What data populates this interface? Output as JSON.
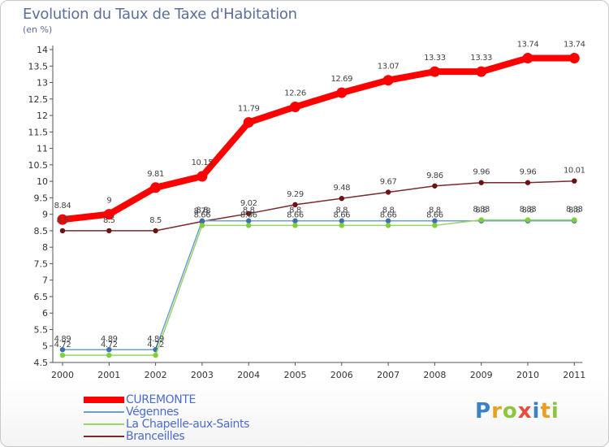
{
  "chart_data": {
    "type": "line",
    "title": "Evolution du Taux de Taxe d'Habitation",
    "subtitle": "(en %)",
    "x": [
      "2000",
      "2001",
      "2002",
      "2003",
      "2004",
      "2005",
      "2006",
      "2007",
      "2008",
      "2009",
      "2010",
      "2011"
    ],
    "ylim": [
      4.5,
      14
    ],
    "yticks": [
      "4.5",
      "5",
      "5.5",
      "6",
      "6.5",
      "7",
      "7.5",
      "8",
      "8.5",
      "9",
      "9.5",
      "10",
      "10.5",
      "11",
      "11.5",
      "12",
      "12.5",
      "13",
      "13.5",
      "14"
    ],
    "grid": false,
    "legend_position": "bottom-left",
    "series": [
      {
        "name": "CUREMONTE",
        "color": "#ff0000",
        "values": [
          8.84,
          9,
          9.81,
          10.15,
          11.79,
          12.26,
          12.69,
          13.07,
          13.33,
          13.33,
          13.74,
          13.74
        ],
        "labels": [
          "8.84",
          "9",
          "9.81",
          "10.15",
          "11.79",
          "12.26",
          "12.69",
          "13.07",
          "13.33",
          "13.33",
          "13.74",
          "13.74"
        ]
      },
      {
        "name": "Végennes",
        "color": "#6f9fcf",
        "values": [
          4.89,
          4.89,
          4.89,
          8.8,
          8.8,
          8.8,
          8.8,
          8.8,
          8.8,
          8.8,
          8.8,
          8.8
        ],
        "labels": [
          "4.89",
          "4.89",
          "4.89",
          "8.8",
          "8.8",
          "8.8",
          "8.8",
          "8.8",
          "8.8",
          "8.8",
          "8.8",
          "8.8"
        ]
      },
      {
        "name": "La Chapelle-aux-Saints",
        "color": "#99d36a",
        "values": [
          4.72,
          4.72,
          4.72,
          8.66,
          8.66,
          8.66,
          8.66,
          8.66,
          8.66,
          8.83,
          8.83,
          8.83
        ],
        "labels": [
          "4.72",
          "4.72",
          "4.72",
          "8.66",
          "8.66",
          "8.66",
          "8.66",
          "8.66",
          "8.66",
          "8.83",
          "8.83",
          "8.83"
        ]
      },
      {
        "name": "Branceilles",
        "color": "#7a2a2a",
        "values": [
          8.5,
          8.5,
          8.5,
          8.78,
          9.02,
          9.29,
          9.48,
          9.67,
          9.86,
          9.96,
          9.96,
          10.01
        ],
        "labels": [
          "8.5",
          "8.5",
          "8.5",
          "8.78",
          "9.02",
          "9.29",
          "9.48",
          "9.67",
          "9.86",
          "9.96",
          "9.96",
          "10.01"
        ]
      }
    ]
  },
  "logo": {
    "letters": [
      "P",
      "r",
      "o",
      "x",
      "i",
      "t",
      "i"
    ],
    "colors": [
      "#3b82c4",
      "#e8a020",
      "#8cc63f",
      "#e84c3d",
      "#3b82c4",
      "#e8a020",
      "#8cc63f"
    ]
  }
}
